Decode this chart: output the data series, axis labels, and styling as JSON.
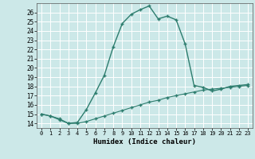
{
  "title": "",
  "xlabel": "Humidex (Indice chaleur)",
  "bg_color": "#cce8e8",
  "grid_color": "#ffffff",
  "line_color": "#2d7d6e",
  "x_upper": [
    0,
    1,
    2,
    3,
    4,
    5,
    6,
    7,
    8,
    9,
    10,
    11,
    12,
    13,
    14,
    15,
    16,
    17,
    18,
    19,
    20,
    21,
    22,
    23
  ],
  "y_upper": [
    15.0,
    14.8,
    14.4,
    14.0,
    14.1,
    15.5,
    17.3,
    19.2,
    22.3,
    24.8,
    25.8,
    26.3,
    26.7,
    25.3,
    25.6,
    25.2,
    22.6,
    18.1,
    17.9,
    17.5,
    17.7,
    18.0,
    18.1,
    18.2
  ],
  "x_lower": [
    0,
    1,
    2,
    3,
    4,
    5,
    6,
    7,
    8,
    9,
    10,
    11,
    12,
    13,
    14,
    15,
    16,
    17,
    18,
    19,
    20,
    21,
    22,
    23
  ],
  "y_lower": [
    15.0,
    14.8,
    14.5,
    14.0,
    14.0,
    14.2,
    14.5,
    14.8,
    15.1,
    15.4,
    15.7,
    16.0,
    16.3,
    16.5,
    16.8,
    17.0,
    17.2,
    17.4,
    17.6,
    17.7,
    17.8,
    17.9,
    18.0,
    18.1
  ],
  "ylim": [
    13.5,
    27.0
  ],
  "xlim": [
    -0.5,
    23.5
  ],
  "yticks": [
    14,
    15,
    16,
    17,
    18,
    19,
    20,
    21,
    22,
    23,
    24,
    25,
    26
  ],
  "xticks": [
    0,
    1,
    2,
    3,
    4,
    5,
    6,
    7,
    8,
    9,
    10,
    11,
    12,
    13,
    14,
    15,
    16,
    17,
    18,
    19,
    20,
    21,
    22,
    23
  ]
}
